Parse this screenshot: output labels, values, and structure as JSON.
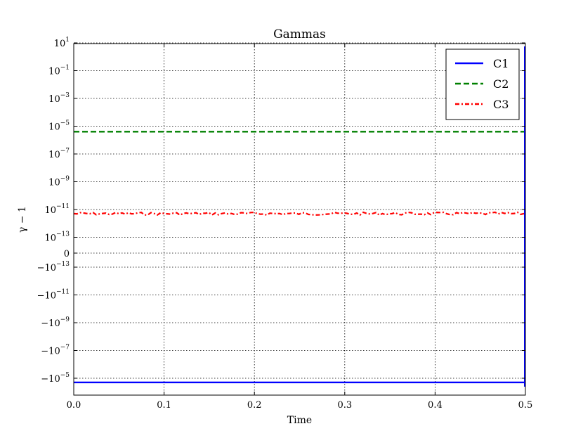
{
  "chart_data": {
    "type": "line",
    "title": "Gammas",
    "xlabel": "Time",
    "ylabel": "γ − 1",
    "xlim": [
      0.0,
      0.5
    ],
    "x_ticks": [
      "0.0",
      "0.1",
      "0.2",
      "0.3",
      "0.4",
      "0.5"
    ],
    "y_scale": "symlog",
    "y_ticks": [
      {
        "base": "10",
        "sup": "1"
      },
      {
        "base": "10",
        "sup": "−1"
      },
      {
        "base": "10",
        "sup": "−3"
      },
      {
        "base": "10",
        "sup": "−5"
      },
      {
        "base": "10",
        "sup": "−7"
      },
      {
        "base": "10",
        "sup": "−9"
      },
      {
        "base": "10",
        "sup": "−11"
      },
      {
        "base": "10",
        "sup": "−13"
      },
      {
        "base": "0",
        "sup": ""
      },
      {
        "base": "−10",
        "sup": "−13"
      },
      {
        "base": "−10",
        "sup": "−11"
      },
      {
        "base": "−10",
        "sup": "−9"
      },
      {
        "base": "−10",
        "sup": "−7"
      },
      {
        "base": "−10",
        "sup": "−5"
      }
    ],
    "grid": true,
    "legend_position": "top-right",
    "series": [
      {
        "name": "C1",
        "color": "#0000ff",
        "style": "solid",
        "x": [
          0.0,
          0.5
        ],
        "y": [
          -2e-05,
          -2e-05
        ]
      },
      {
        "name": "C2",
        "color": "#008000",
        "style": "dashed",
        "x": [
          0.0,
          0.5
        ],
        "y": [
          4e-06,
          4e-06
        ]
      },
      {
        "name": "C3",
        "color": "#ff0000",
        "style": "dashdot",
        "x": [
          0.0,
          0.5
        ],
        "y": [
          5e-12,
          5e-12
        ]
      }
    ]
  }
}
